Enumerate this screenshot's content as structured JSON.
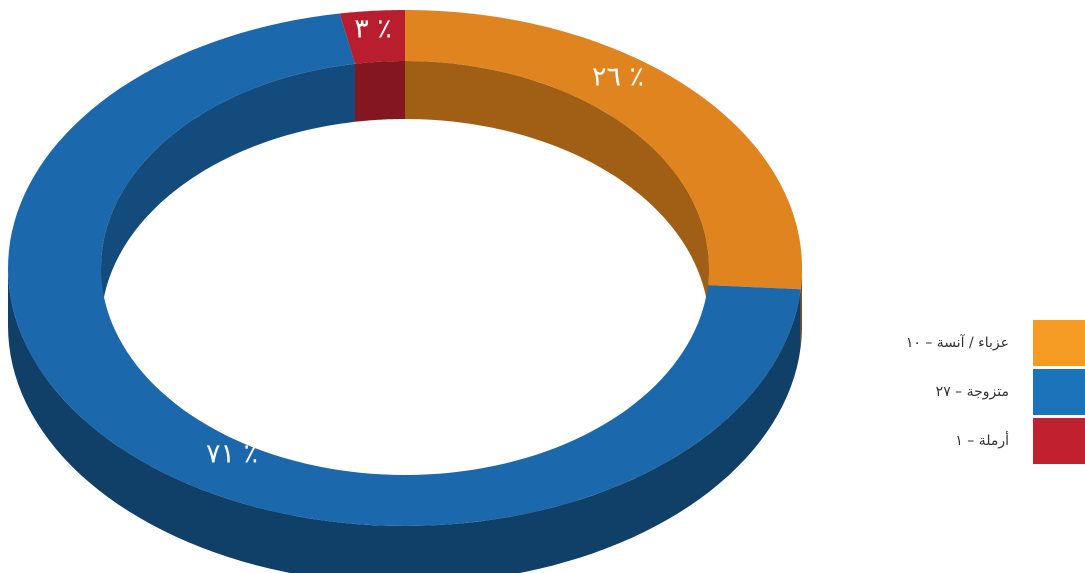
{
  "chart_data": {
    "type": "pie",
    "subtype": "3d-donut",
    "slices": [
      {
        "name": "عزباء / آنسة – ١٠",
        "value": 10,
        "percent_label": "٢٦ ٪",
        "color": "#DF841E",
        "legend_color": "#F59A23"
      },
      {
        "name": "متزوجة – ٢٧",
        "value": 27,
        "percent_label": "٧١ ٪",
        "color": "#1B69AC",
        "legend_color": "#1B73BA"
      },
      {
        "name": "أرملة – ١",
        "value": 1,
        "percent_label": "٣ ٪",
        "color": "#B81E2D",
        "legend_color": "#C1202F"
      }
    ],
    "legend_position": "right"
  }
}
